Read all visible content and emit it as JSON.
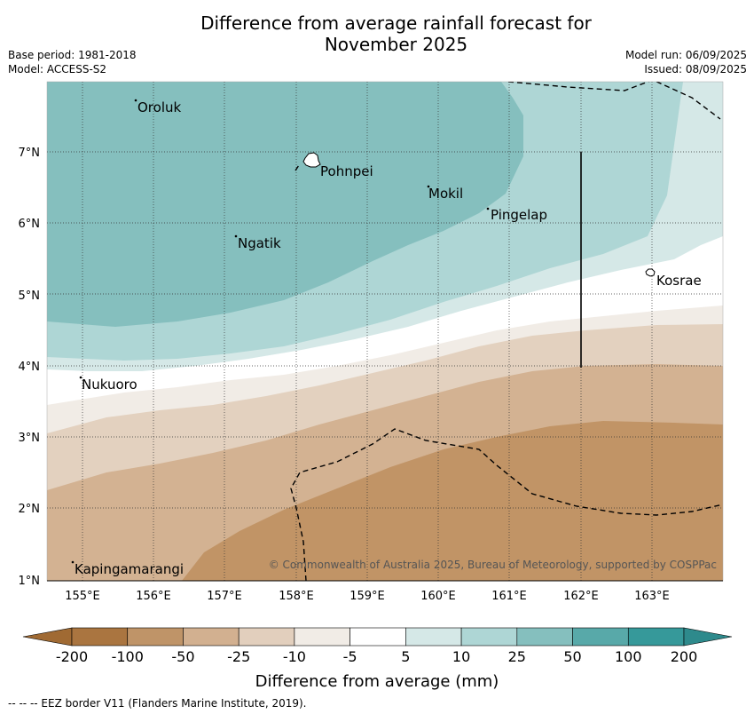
{
  "title_line1": "Difference from average rainfall forecast for",
  "title_line2": "November 2025",
  "base_period": "Base period: 1981-2018",
  "model": "Model: ACCESS-S2",
  "model_run": "Model run: 06/09/2025",
  "issued": "Issued: 08/09/2025",
  "lat_labels": [
    "7°N",
    "6°N",
    "5°N",
    "4°N",
    "3°N",
    "2°N",
    "1°N"
  ],
  "lon_labels": [
    "155°E",
    "156°E",
    "157°E",
    "158°E",
    "159°E",
    "160°E",
    "161°E",
    "162°E",
    "163°E"
  ],
  "places": [
    "Oroluk",
    "Pohnpei",
    "Mokil",
    "Pingelap",
    "Ngatik",
    "Kosrae",
    "Nukuoro",
    "Kapingamarangi"
  ],
  "copyright": "© Commonwealth of Australia 2025, Bureau of Meteorology, supported by COSPPac",
  "colorbar": {
    "label": "Difference from average (mm)",
    "ticks": [
      "-200",
      "-100",
      "-50",
      "-25",
      "-10",
      "-5",
      "5",
      "10",
      "25",
      "50",
      "100",
      "200"
    ],
    "colors": [
      "#aa7540",
      "#bf9468",
      "#d2b090",
      "#e2cfbd",
      "#f1ece6",
      "#ffffff",
      "#d5e8e7",
      "#aed6d5",
      "#85bfbe",
      "#58a9a9",
      "#36999a"
    ],
    "under_color": "#a06a33",
    "over_color": "#2e8a8c"
  },
  "legend_footnote": "--  --  -- EEZ border V11 (Flanders Marine Institute, 2019)."
}
